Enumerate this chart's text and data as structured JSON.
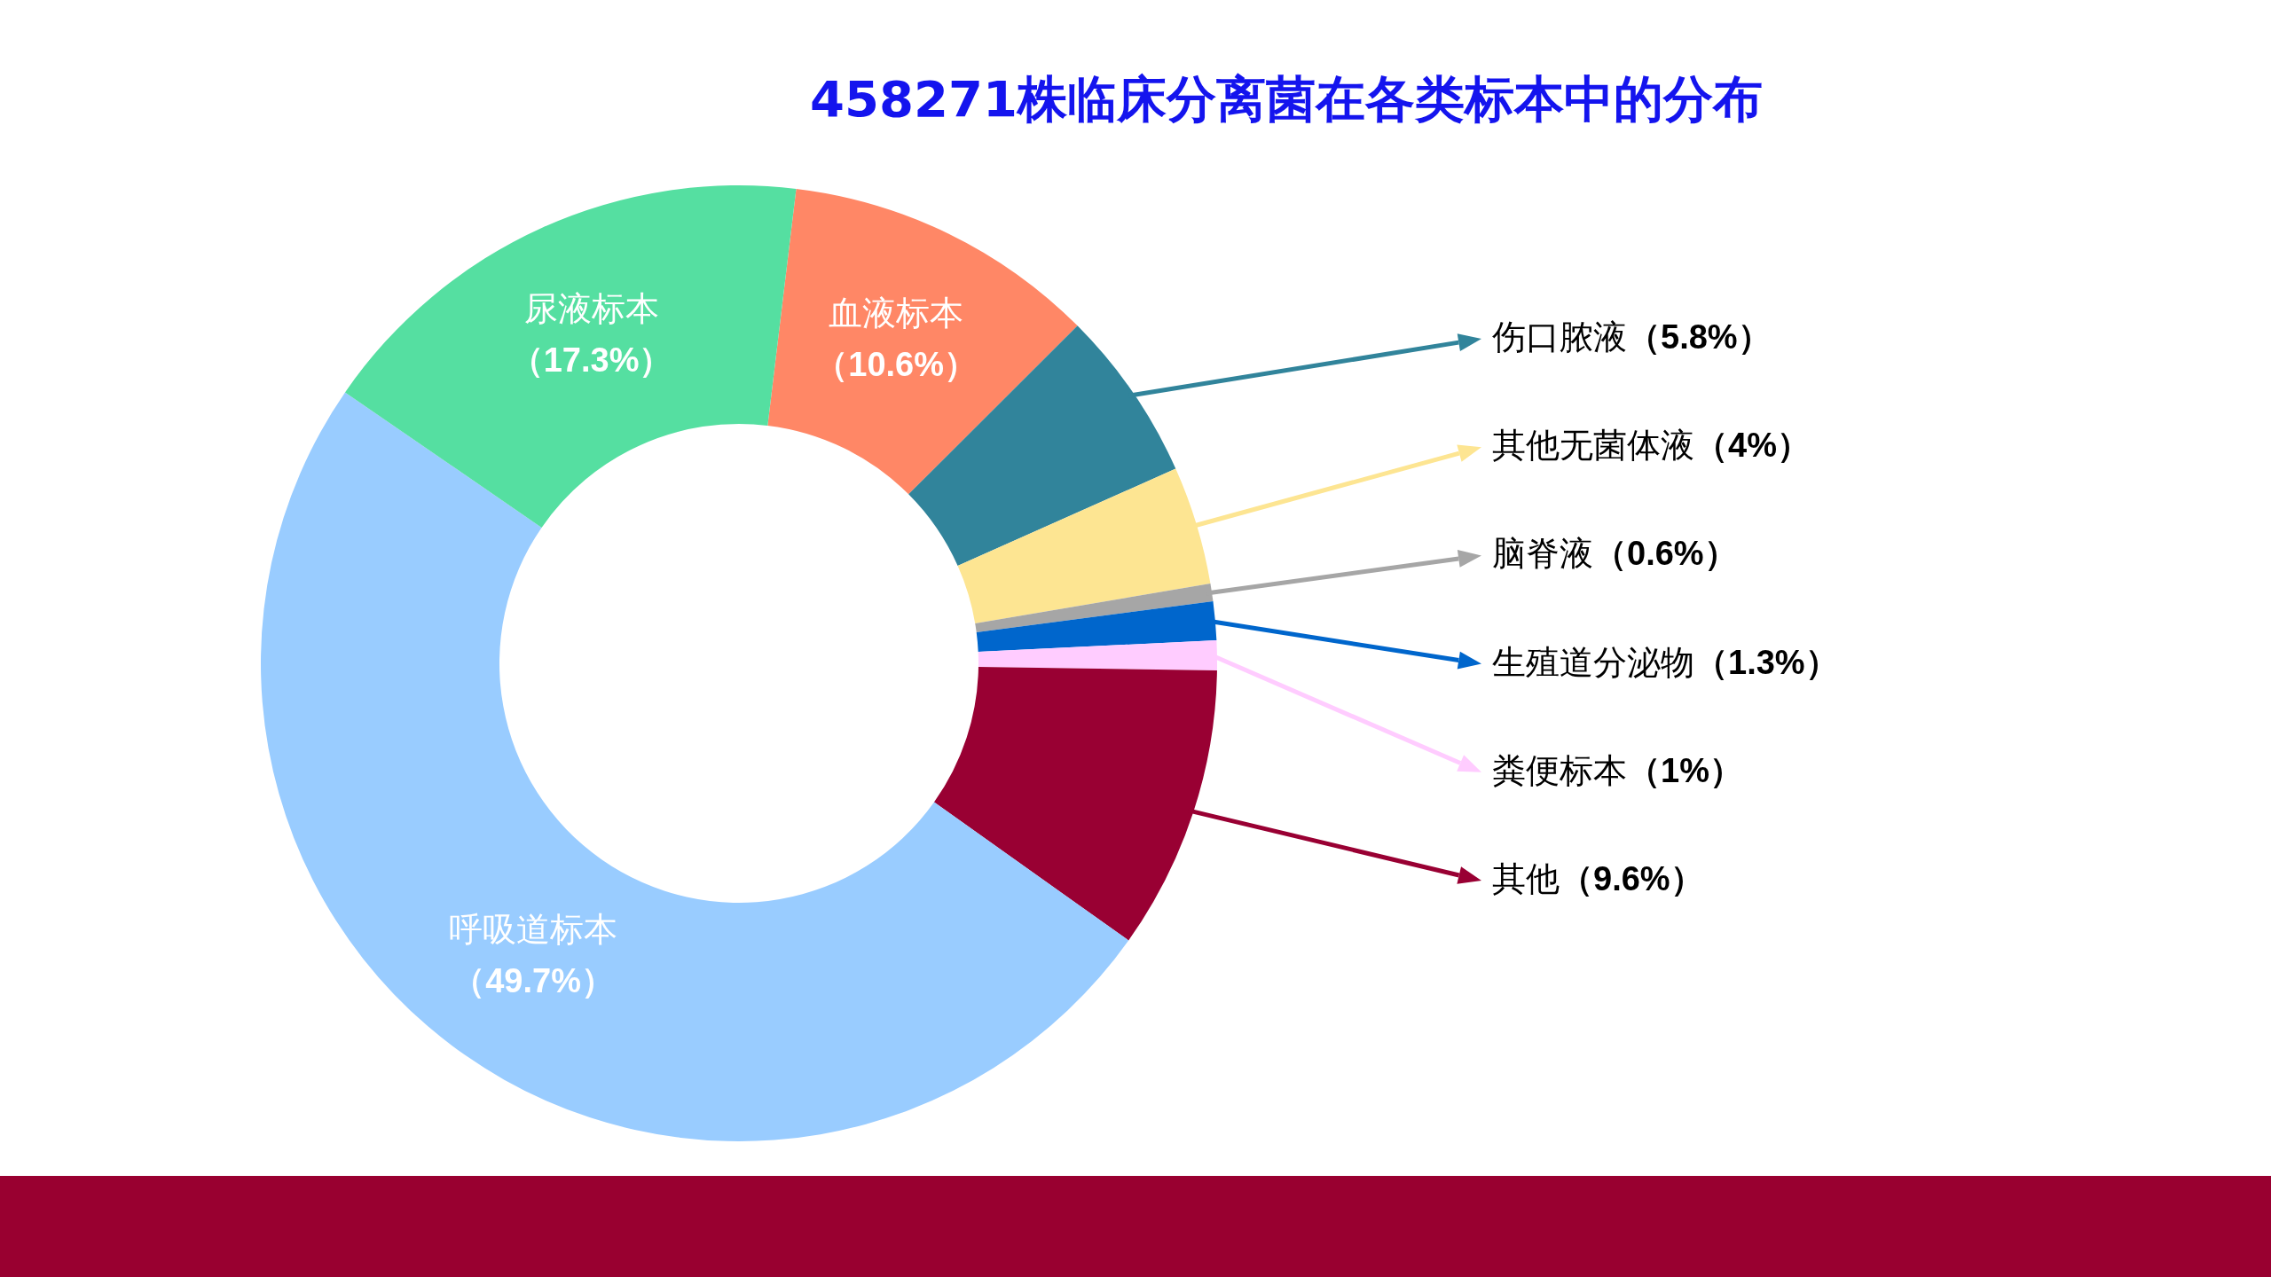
{
  "chart_data": {
    "type": "donut",
    "title": "458271株临床分离菌在各类标本中的分布",
    "categories": [
      "血液标本",
      "伤口脓液",
      "其他无菌体液",
      "脑脊液",
      "生殖道分泌物",
      "粪便标本",
      "其他",
      "呼吸道标本",
      "尿液标本"
    ],
    "values": [
      10.6,
      5.8,
      4,
      0.6,
      1.3,
      1,
      9.6,
      49.7,
      17.3
    ],
    "colors": [
      "#ff8766",
      "#31849b",
      "#fde592",
      "#a6a6a6",
      "#0066cc",
      "#ffccff",
      "#990033",
      "#99ccff",
      "#55dfa1"
    ],
    "legend": "right",
    "value_labels": [
      "（10.6%）",
      "（5.8%）",
      "（4%）",
      "（0.6%）",
      "（1.3%）",
      "（1%）",
      "（9.6%）",
      "（49.7%）",
      "（17.3%）"
    ]
  }
}
